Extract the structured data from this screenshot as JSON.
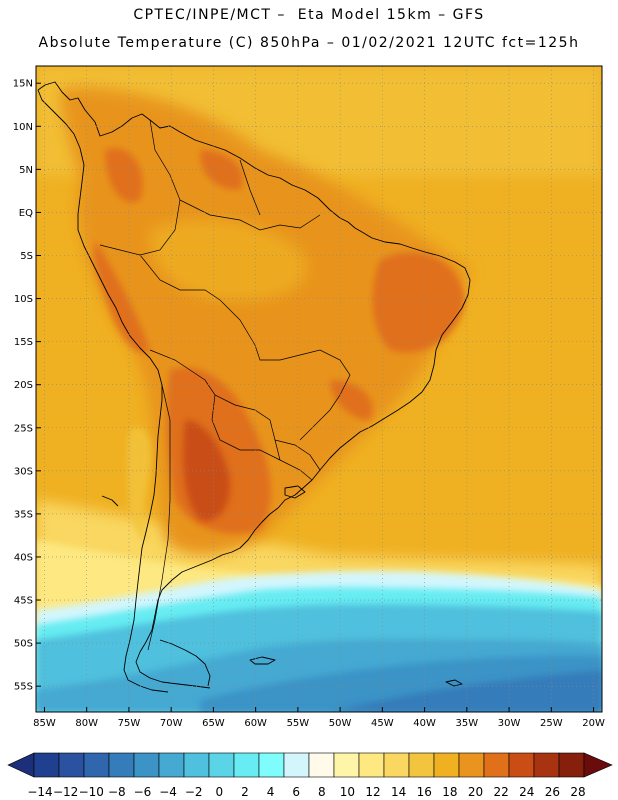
{
  "header": {
    "line1": "CPTEC/INPE/MCT –  Eta Model 15km – GFS",
    "line2": "Absolute Temperature (C) 850hPa – 01/02/2021 12UTC fct=125h"
  },
  "map": {
    "lat_labels": [
      "15N",
      "10N",
      "5N",
      "EQ",
      "5S",
      "10S",
      "15S",
      "20S",
      "25S",
      "30S",
      "35S",
      "40S",
      "45S",
      "50S",
      "55S"
    ],
    "lat_values": [
      15,
      10,
      5,
      0,
      -5,
      -10,
      -15,
      -20,
      -25,
      -30,
      -35,
      -40,
      -45,
      -50,
      -55
    ],
    "lon_labels": [
      "85W",
      "80W",
      "75W",
      "70W",
      "65W",
      "60W",
      "55W",
      "50W",
      "45W",
      "40W",
      "35W",
      "30W",
      "25W",
      "20W"
    ],
    "lon_values": [
      -85,
      -80,
      -75,
      -70,
      -65,
      -60,
      -55,
      -50,
      -45,
      -40,
      -35,
      -30,
      -25,
      -20
    ],
    "lat_range": [
      -58,
      17
    ],
    "lon_range": [
      -86,
      -19
    ],
    "grid": "dotted"
  },
  "colorbar": {
    "labels": [
      "-14",
      "-12",
      "-10",
      "-8",
      "-6",
      "-4",
      "-2",
      "0",
      "2",
      "4",
      "6",
      "8",
      "10",
      "12",
      "14",
      "16",
      "18",
      "20",
      "22",
      "24",
      "26",
      "28"
    ],
    "colors": [
      "#1f3f8f",
      "#2a52a0",
      "#2f66ae",
      "#347cba",
      "#3b93c6",
      "#45a9d2",
      "#4fc0dd",
      "#5ad4e6",
      "#66ecf2",
      "#7ffcfc",
      "#d3f6fd",
      "#fffaea",
      "#fff5a8",
      "#fde881",
      "#f9d761",
      "#f3c43e",
      "#efb022",
      "#e8941f",
      "#e0701a",
      "#c94d14",
      "#a83310",
      "#86200c"
    ],
    "under_color": "#1b2f7a",
    "over_color": "#6a0c0c"
  }
}
